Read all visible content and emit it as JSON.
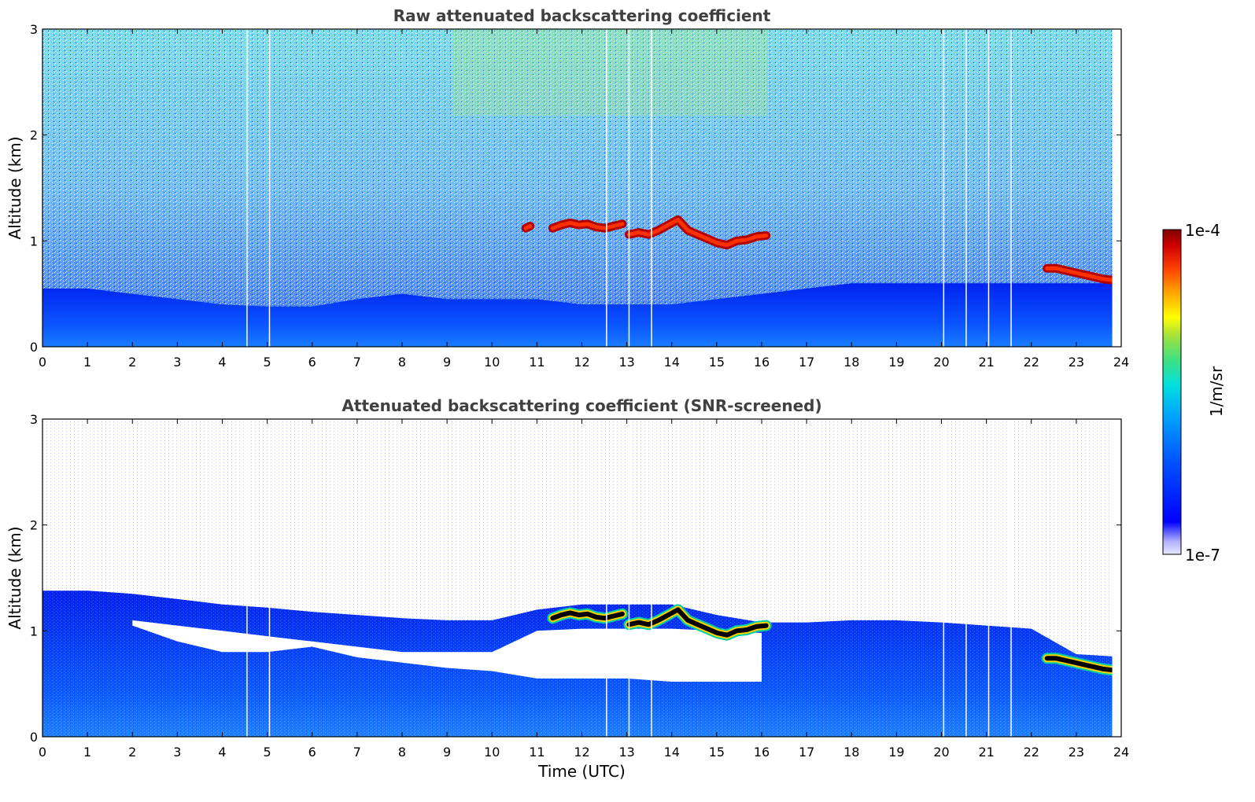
{
  "chart_data": [
    {
      "type": "heatmap",
      "title": "Raw attenuated backscattering coefficient",
      "xlabel": "",
      "ylabel": "Altitude (km)",
      "xlim": [
        0,
        24
      ],
      "ylim": [
        0,
        3
      ],
      "x_ticks": [
        "0",
        "1",
        "2",
        "3",
        "4",
        "5",
        "6",
        "7",
        "8",
        "9",
        "10",
        "11",
        "12",
        "13",
        "14",
        "15",
        "16",
        "17",
        "18",
        "19",
        "20",
        "21",
        "22",
        "23",
        "24"
      ],
      "y_ticks": [
        "0",
        "1",
        "2",
        "3"
      ],
      "data_end_time_utc": 23.8,
      "gaps_utc": [
        4.55,
        5.05,
        12.55,
        13.05,
        13.55,
        20.05,
        20.55,
        21.05,
        21.55
      ],
      "cloud_layers": [
        {
          "start_utc": 10.75,
          "end_utc": 10.85,
          "altitude_km": [
            1.12,
            1.14
          ]
        },
        {
          "start_utc": 11.35,
          "end_utc": 12.9,
          "altitude_km": [
            1.12,
            1.15,
            1.17,
            1.15,
            1.16,
            1.13,
            1.12,
            1.14,
            1.16
          ]
        },
        {
          "start_utc": 13.05,
          "end_utc": 16.1,
          "altitude_km": [
            1.06,
            1.08,
            1.06,
            1.1,
            1.15,
            1.2,
            1.1,
            1.06,
            1.02,
            0.98,
            0.96,
            1.0,
            1.01,
            1.04,
            1.05
          ]
        },
        {
          "start_utc": 22.35,
          "end_utc": 23.8,
          "altitude_km": [
            0.74,
            0.74,
            0.72,
            0.7,
            0.68,
            0.66,
            0.64,
            0.63
          ]
        }
      ],
      "aerosol_top_km": [
        0.55,
        0.55,
        0.5,
        0.45,
        0.4,
        0.38,
        0.38,
        0.45,
        0.5,
        0.45,
        0.45,
        0.45,
        0.4,
        0.4,
        0.4,
        0.45,
        0.5,
        0.55,
        0.6,
        0.6,
        0.6,
        0.6,
        0.6,
        0.6,
        0.6
      ]
    },
    {
      "type": "heatmap",
      "title": "Attenuated backscattering coefficient (SNR-screened)",
      "xlabel": "Time (UTC)",
      "ylabel": "Altitude (km)",
      "xlim": [
        0,
        24
      ],
      "ylim": [
        0,
        3
      ],
      "x_ticks": [
        "0",
        "1",
        "2",
        "3",
        "4",
        "5",
        "6",
        "7",
        "8",
        "9",
        "10",
        "11",
        "12",
        "13",
        "14",
        "15",
        "16",
        "17",
        "18",
        "19",
        "20",
        "21",
        "22",
        "23",
        "24"
      ],
      "y_ticks": [
        "0",
        "1",
        "2",
        "3"
      ],
      "data_end_time_utc": 23.8,
      "gaps_utc": [
        4.55,
        5.05,
        12.55,
        13.05,
        13.55,
        20.05,
        20.55,
        21.05,
        21.55
      ],
      "signal_top_km": [
        1.38,
        1.38,
        1.35,
        1.3,
        1.25,
        1.22,
        1.18,
        1.15,
        1.12,
        1.1,
        1.1,
        1.2,
        1.25,
        1.25,
        1.25,
        1.15,
        1.08,
        1.08,
        1.1,
        1.1,
        1.08,
        1.05,
        1.02,
        0.78,
        0.76
      ],
      "cleared_gap_top_km": [
        1.1,
        1.1,
        1.1,
        1.05,
        1.0,
        0.95,
        0.9,
        0.85,
        0.8,
        0.8,
        0.8,
        1.0,
        1.02,
        1.02,
        1.02,
        1.0,
        0.98,
        0.0,
        0.0,
        0.0,
        0.0,
        0.0,
        0.0,
        0.0,
        0.0
      ],
      "cleared_gap_bottom_km": [
        1.1,
        1.1,
        1.05,
        0.9,
        0.8,
        0.8,
        0.85,
        0.75,
        0.7,
        0.65,
        0.62,
        0.55,
        0.55,
        0.55,
        0.52,
        0.52,
        0.52,
        0.0,
        0.0,
        0.0,
        0.0,
        0.0,
        0.0,
        0.0,
        0.0
      ],
      "cloud_layers": [
        {
          "start_utc": 11.35,
          "end_utc": 12.9,
          "altitude_km": [
            1.12,
            1.15,
            1.17,
            1.15,
            1.16,
            1.13,
            1.12,
            1.14,
            1.16
          ]
        },
        {
          "start_utc": 13.05,
          "end_utc": 16.1,
          "altitude_km": [
            1.06,
            1.08,
            1.06,
            1.1,
            1.15,
            1.2,
            1.1,
            1.06,
            1.02,
            0.98,
            0.96,
            1.0,
            1.01,
            1.04,
            1.05
          ]
        },
        {
          "start_utc": 22.35,
          "end_utc": 23.8,
          "altitude_km": [
            0.74,
            0.74,
            0.72,
            0.7,
            0.68,
            0.66,
            0.64,
            0.63
          ]
        }
      ]
    }
  ],
  "colorbar": {
    "label": "1/m/sr",
    "max_label": "1e-4",
    "min_label": "1e-7",
    "scale": "log",
    "colors": [
      "#e8e8ff",
      "#b0b0ff",
      "#0000ff",
      "#0050ff",
      "#00a0ff",
      "#00e0e0",
      "#40e080",
      "#a0e040",
      "#ffff00",
      "#ffa000",
      "#ff4000",
      "#d00000",
      "#800000"
    ]
  }
}
